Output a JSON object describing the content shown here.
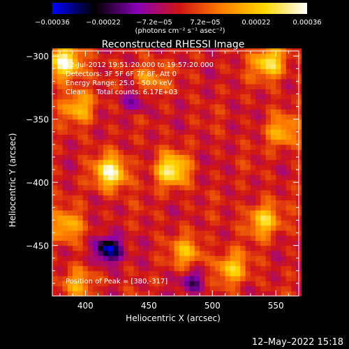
{
  "chart_data": {
    "type": "heatmap",
    "title": "Reconstructed RHESSI Image",
    "xlabel": "Heliocentric X (arcsec)",
    "ylabel": "Heliocentric Y (arcsec)",
    "xlim": [
      374,
      568
    ],
    "ylim": [
      -490,
      -296
    ],
    "x_ticks": [
      400,
      450,
      500,
      550
    ],
    "y_ticks": [
      -300,
      -350,
      -400,
      -450
    ],
    "x_tick_labels": [
      "400",
      "450",
      "500",
      "550"
    ],
    "y_tick_labels": [
      "−300",
      "−350",
      "−400",
      "−450"
    ],
    "colorbar": {
      "ticks": [
        "−0.00036",
        "−0.00022",
        "−7.2e−05",
        "7.2e−05",
        "0.00022",
        "0.00036"
      ],
      "unit_label": "(photons cm⁻² s⁻¹ asec⁻²)",
      "range": [
        -0.00036,
        0.00036
      ],
      "colors": [
        "#0000ff",
        "#000000",
        "#8a00b8",
        "#d01515",
        "#ff8000",
        "#ffd800",
        "#ffffff"
      ]
    },
    "annotations": [
      "12-Jul-2012 19:51:20.000 to 19:57:20.000",
      "Detectors: 3F 5F 6F 7F 8F, Att 0",
      "Energy Range: 25.0 - 50.0 keV",
      "Clean     Total counts: 6.17E+03"
    ],
    "peak_label": "Position of Peak = [380,-317]",
    "peak": [
      380,
      -317
    ],
    "hotspots": [
      {
        "x": 384,
        "y": -305,
        "amp": 0.00036
      },
      {
        "x": 420,
        "y": -392,
        "amp": 0.00032
      },
      {
        "x": 468,
        "y": -390,
        "amp": 0.0003
      },
      {
        "x": 545,
        "y": -305,
        "amp": 0.00028
      },
      {
        "x": 540,
        "y": -430,
        "amp": 0.00024
      },
      {
        "x": 515,
        "y": -468,
        "amp": 0.00022
      },
      {
        "x": 395,
        "y": -340,
        "amp": 0.0002
      },
      {
        "x": 385,
        "y": -435,
        "amp": 0.0002
      },
      {
        "x": 480,
        "y": -455,
        "amp": 0.00018
      },
      {
        "x": 555,
        "y": -360,
        "amp": 0.00018
      },
      {
        "x": 450,
        "y": -318,
        "amp": 0.00016
      },
      {
        "x": 395,
        "y": -480,
        "amp": 0.00016
      }
    ],
    "coldspots": [
      {
        "x": 418,
        "y": -453,
        "amp": -0.00036
      },
      {
        "x": 485,
        "y": -478,
        "amp": -0.00016
      },
      {
        "x": 440,
        "y": -335,
        "amp": -0.00014
      }
    ]
  },
  "footer": {
    "date": "12–May–2022 15:18"
  }
}
